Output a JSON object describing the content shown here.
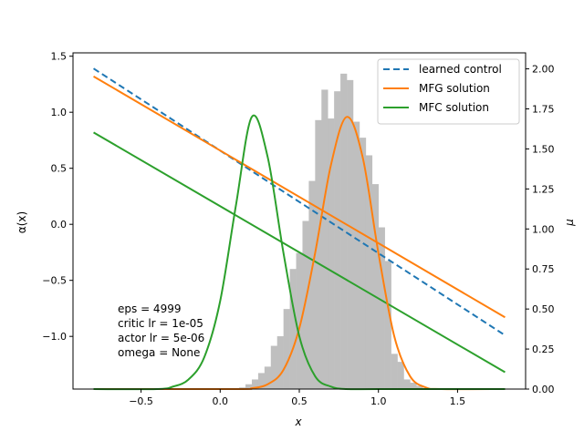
{
  "chart_data": {
    "type": "line",
    "xlabel": "x",
    "ylabel_left": "α(x)",
    "ylabel_right": "μ",
    "xlim": [
      -0.93,
      1.93
    ],
    "ylim_left": [
      -1.47,
      1.53
    ],
    "ylim_right": [
      0.0,
      2.1
    ],
    "xticks": [
      -0.5,
      0.0,
      0.5,
      1.0,
      1.5
    ],
    "xtick_labels": [
      "−0.5",
      "0.0",
      "0.5",
      "1.0",
      "1.5"
    ],
    "yticks_left": [
      -1.0,
      -0.5,
      0.0,
      0.5,
      1.0,
      1.5
    ],
    "ytick_labels_left": [
      "−1.0",
      "−0.5",
      "0.0",
      "0.5",
      "1.0",
      "1.5"
    ],
    "yticks_right": [
      0.0,
      0.25,
      0.5,
      0.75,
      1.0,
      1.25,
      1.5,
      1.75,
      2.0
    ],
    "ytick_labels_right": [
      "0.00",
      "0.25",
      "0.50",
      "0.75",
      "1.00",
      "1.25",
      "1.50",
      "1.75",
      "2.00"
    ],
    "grid": false,
    "legend_position": "top-right",
    "colors": {
      "learned": "#1f77b4",
      "mfg": "#ff7f0e",
      "mfc": "#2ca02c",
      "hist": "#bfbfbf"
    },
    "series": [
      {
        "name": "learned control",
        "axis": "left",
        "style": "dashed",
        "x": [
          -0.8,
          1.8
        ],
        "y": [
          1.39,
          -0.99
        ]
      },
      {
        "name": "MFG solution",
        "axis": "left",
        "style": "solid",
        "x": [
          -0.8,
          1.8
        ],
        "y": [
          1.32,
          -0.83
        ]
      },
      {
        "name": "MFC solution",
        "axis": "left",
        "style": "solid",
        "x": [
          -0.8,
          1.8
        ],
        "y": [
          0.82,
          -1.32
        ]
      },
      {
        "name": "",
        "axis": "right",
        "style": "solid",
        "color_key": "mfg",
        "x": [
          -0.8,
          0.1,
          0.2,
          0.3,
          0.4,
          0.5,
          0.6,
          0.7,
          0.8,
          0.9,
          1.0,
          1.1,
          1.2,
          1.3,
          1.4,
          1.8
        ],
        "y": [
          0.0,
          0.0,
          0.005,
          0.03,
          0.12,
          0.38,
          0.85,
          1.4,
          1.7,
          1.45,
          0.85,
          0.33,
          0.08,
          0.01,
          0.0,
          0.0
        ]
      },
      {
        "name": "",
        "axis": "right",
        "style": "solid",
        "color_key": "mfc",
        "x": [
          -0.8,
          -0.4,
          -0.3,
          -0.2,
          -0.1,
          0.0,
          0.1,
          0.2,
          0.3,
          0.4,
          0.5,
          0.6,
          0.7,
          0.8,
          1.0,
          1.8
        ],
        "y": [
          0.0,
          0.0,
          0.015,
          0.06,
          0.2,
          0.55,
          1.15,
          1.7,
          1.45,
          0.85,
          0.33,
          0.08,
          0.015,
          0.0,
          0.0,
          0.0
        ]
      }
    ],
    "histogram": {
      "axis": "right",
      "bin_edges": [
        0.12,
        0.16,
        0.2,
        0.24,
        0.28,
        0.32,
        0.36,
        0.4,
        0.44,
        0.48,
        0.52,
        0.56,
        0.6,
        0.64,
        0.68,
        0.72,
        0.76,
        0.8,
        0.84,
        0.88,
        0.92,
        0.96,
        1.0,
        1.04,
        1.08,
        1.12,
        1.16,
        1.2,
        1.24,
        1.28
      ],
      "counts": [
        0.01,
        0.03,
        0.06,
        0.1,
        0.14,
        0.27,
        0.33,
        0.5,
        0.75,
        0.85,
        1.05,
        1.3,
        1.68,
        1.87,
        1.69,
        1.86,
        1.97,
        1.93,
        1.67,
        1.57,
        1.46,
        1.28,
        1.01,
        0.8,
        0.22,
        0.17,
        0.06,
        0.04,
        0.02
      ]
    },
    "annotation": [
      "eps = 4999",
      "critic lr = 1e-05",
      "actor lr = 5e-06",
      "omega = None"
    ]
  }
}
